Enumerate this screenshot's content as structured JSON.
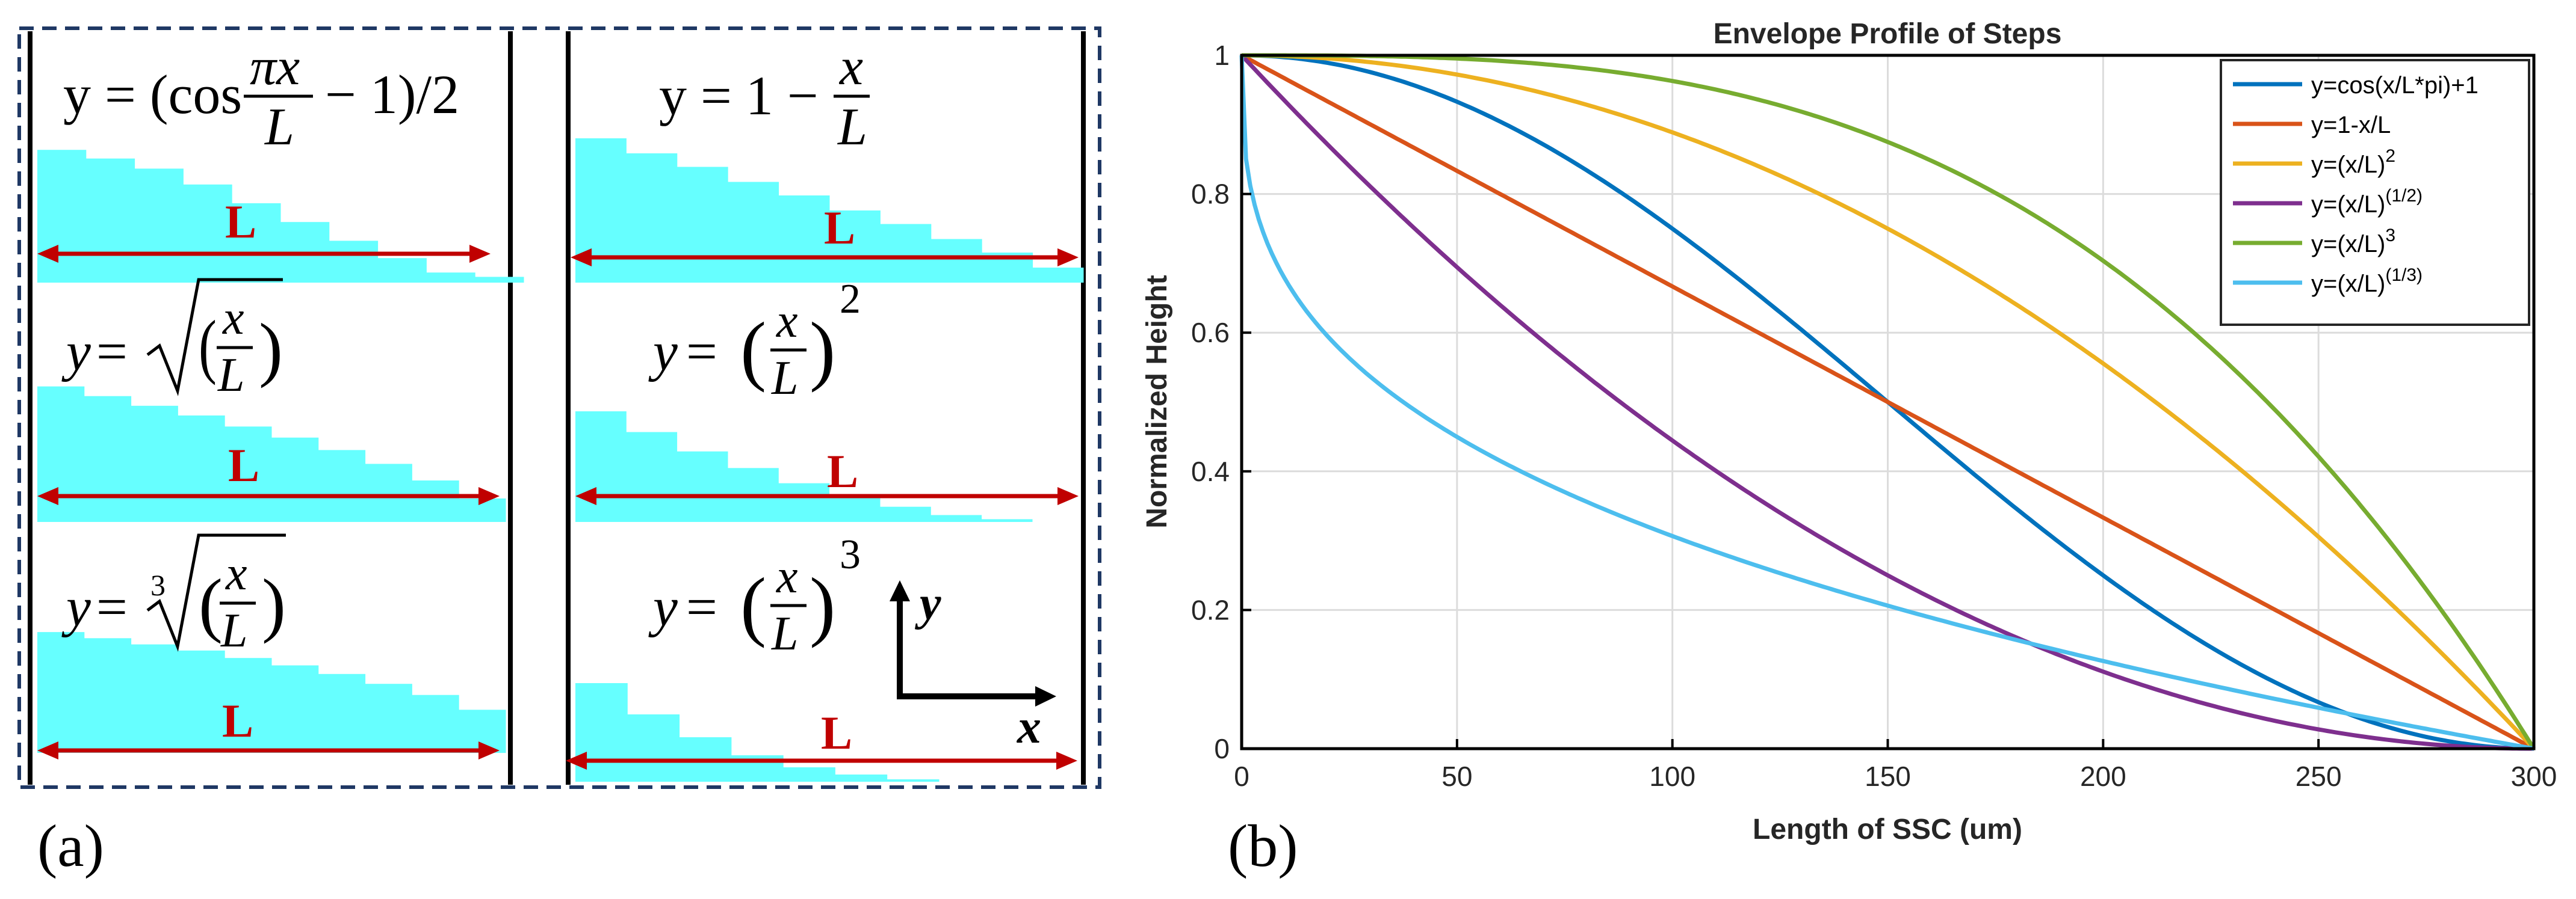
{
  "panel_a": {
    "label": "(a)",
    "length_label": "L",
    "cells": [
      {
        "id": "cos",
        "equation": "y = (cos πx/L − 1)/2",
        "steps": [
          0.92,
          0.86,
          0.79,
          0.68,
          0.55,
          0.42,
          0.29,
          0.17,
          0.07,
          0.04
        ]
      },
      {
        "id": "lin",
        "equation": "y = 1 − x/L",
        "steps": [
          0.96,
          0.86,
          0.77,
          0.67,
          0.58,
          0.48,
          0.39,
          0.29,
          0.2,
          0.1
        ]
      },
      {
        "id": "sqrt",
        "equation": "y = √(x/L)",
        "steps": [
          0.98,
          0.91,
          0.84,
          0.77,
          0.69,
          0.61,
          0.52,
          0.42,
          0.3,
          0.17
        ]
      },
      {
        "id": "sq",
        "equation": "y = (x/L)²",
        "steps": [
          0.8,
          0.65,
          0.51,
          0.39,
          0.28,
          0.19,
          0.11,
          0.05,
          0.02
        ]
      },
      {
        "id": "cbrt",
        "equation": "y = ∛(x/L)",
        "steps": [
          0.98,
          0.93,
          0.88,
          0.83,
          0.77,
          0.71,
          0.64,
          0.56,
          0.47,
          0.35
        ]
      },
      {
        "id": "cube",
        "equation": "y = (x/L)³",
        "steps": [
          0.82,
          0.56,
          0.37,
          0.22,
          0.12,
          0.06,
          0.02
        ]
      }
    ],
    "axes_symbol": {
      "y": "y",
      "x": "x"
    }
  },
  "panel_b": {
    "label": "(b)"
  },
  "chart_data": {
    "type": "line",
    "title": "Envelope Profile of Steps",
    "xlabel": "Length of SSC (um)",
    "ylabel": "Normalized Height",
    "xlim": [
      0,
      300
    ],
    "ylim": [
      0,
      1
    ],
    "xticks": [
      0,
      50,
      100,
      150,
      200,
      250,
      300
    ],
    "yticks": [
      0,
      0.2,
      0.4,
      0.6,
      0.8,
      1
    ],
    "ytick_labels": [
      "0",
      "0.2",
      "0.4",
      "0.6",
      "0.8",
      "1"
    ],
    "grid": true,
    "legend_position": "top-right",
    "L": 300,
    "series": [
      {
        "name": "y=cos(x/L*pi)+1",
        "legend_base": "y=cos(x/L*pi)+1",
        "legend_sup": "",
        "kind": "cos",
        "color": "#0072BD"
      },
      {
        "name": "y=1-x/L",
        "legend_base": "y=1-x/L",
        "legend_sup": "",
        "kind": "lin",
        "color": "#D95319"
      },
      {
        "name": "y=(x/L)^2",
        "legend_base": "y=(x/L)",
        "legend_sup": "2",
        "kind": "sq",
        "color": "#EDB120"
      },
      {
        "name": "y=(x/L)^(1/2)",
        "legend_base": "y=(x/L)",
        "legend_sup": "(1/2)",
        "kind": "sqrt",
        "color": "#7E2F8E"
      },
      {
        "name": "y=(x/L)^3",
        "legend_base": "y=(x/L)",
        "legend_sup": "3",
        "kind": "cube",
        "color": "#77AC30"
      },
      {
        "name": "y=(x/L)^(1/3)",
        "legend_base": "y=(x/L)",
        "legend_sup": "(1/3)",
        "kind": "cbrt",
        "color": "#4DBEEE"
      }
    ]
  }
}
